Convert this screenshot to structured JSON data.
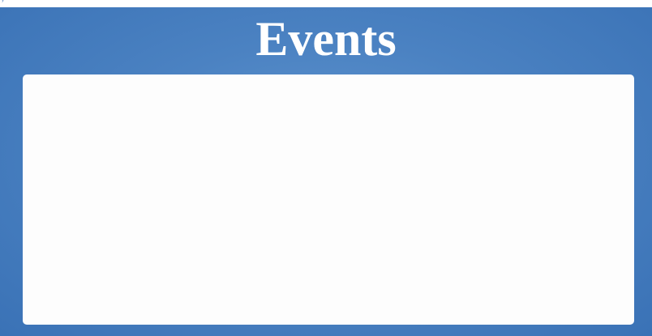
{
  "header": {
    "title": "Events",
    "corner_glyph": "ʸ"
  },
  "colors": {
    "panel_background": "#4b82c2",
    "title_text": "#ffffff",
    "card_background": "#fdfdfd"
  }
}
